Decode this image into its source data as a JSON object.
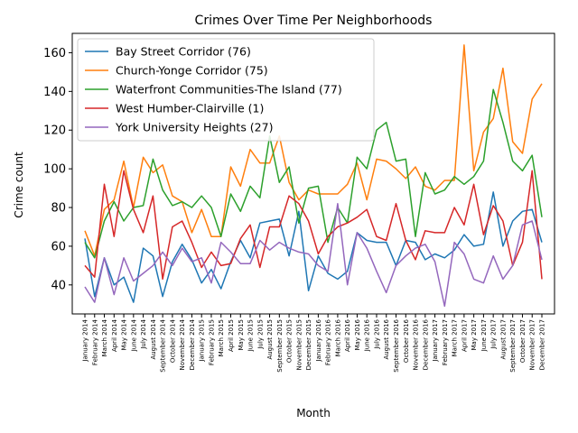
{
  "chart_data": {
    "type": "line",
    "title": "Crimes Over Time Per Neighborhoods",
    "xlabel": "Month",
    "ylabel": "Crime count",
    "ylim": [
      25,
      170
    ],
    "yticks": [
      40,
      60,
      80,
      100,
      120,
      140,
      160
    ],
    "grid": false,
    "legend_position": "top-left",
    "categories": [
      "January 2014",
      "February 2014",
      "March 2014",
      "April 2014",
      "May 2014",
      "June 2014",
      "July 2014",
      "August 2014",
      "September 2014",
      "October 2014",
      "November 2014",
      "December 2014",
      "January 2015",
      "February 2015",
      "March 2015",
      "April 2015",
      "May 2015",
      "June 2015",
      "July 2015",
      "August 2015",
      "September 2015",
      "October 2015",
      "November 2015",
      "December 2015",
      "January 2016",
      "February 2016",
      "March 2016",
      "April 2016",
      "May 2016",
      "June 2016",
      "July 2016",
      "August 2016",
      "September 2016",
      "October 2016",
      "November 2016",
      "December 2016",
      "January 2017",
      "February 2017",
      "March 2017",
      "April 2017",
      "May 2017",
      "June 2017",
      "July 2017",
      "August 2017",
      "September 2017",
      "October 2017",
      "November 2017",
      "December 2017"
    ],
    "series": [
      {
        "name": "Bay Street Corridor (76)",
        "color": "#1f77b4",
        "values": [
          64,
          34,
          54,
          40,
          44,
          31,
          59,
          55,
          34,
          52,
          61,
          53,
          41,
          48,
          38,
          52,
          63,
          54,
          72,
          73,
          74,
          55,
          78,
          37,
          55,
          46,
          43,
          47,
          67,
          63,
          62,
          62,
          50,
          63,
          62,
          53,
          56,
          54,
          58,
          66,
          60,
          61,
          88,
          60,
          73,
          78,
          79,
          62
        ]
      },
      {
        "name": "Church-Yonge Corridor (75)",
        "color": "#ff7f0e",
        "values": [
          68,
          55,
          79,
          84,
          104,
          80,
          106,
          98,
          102,
          86,
          83,
          67,
          79,
          65,
          65,
          101,
          91,
          110,
          103,
          103,
          117,
          93,
          84,
          89,
          87,
          87,
          87,
          92,
          103,
          84,
          105,
          104,
          100,
          95,
          101,
          91,
          89,
          94,
          94,
          164,
          99,
          119,
          126,
          152,
          114,
          108,
          136,
          144
        ]
      },
      {
        "name": "Waterfront Communities-The Island (77)",
        "color": "#2ca02c",
        "values": [
          62,
          54,
          73,
          83,
          73,
          80,
          81,
          105,
          89,
          81,
          83,
          80,
          86,
          80,
          65,
          87,
          78,
          91,
          85,
          117,
          93,
          101,
          72,
          90,
          91,
          62,
          80,
          72,
          106,
          100,
          120,
          124,
          104,
          105,
          65,
          98,
          87,
          89,
          96,
          92,
          96,
          104,
          141,
          124,
          104,
          99,
          107,
          75
        ]
      },
      {
        "name": "West Humber-Clairville (1)",
        "color": "#d62728",
        "values": [
          50,
          44,
          92,
          65,
          99,
          79,
          67,
          86,
          43,
          70,
          73,
          62,
          49,
          57,
          50,
          51,
          64,
          71,
          49,
          70,
          70,
          86,
          82,
          73,
          56,
          65,
          70,
          72,
          75,
          79,
          65,
          63,
          82,
          63,
          53,
          68,
          67,
          67,
          80,
          71,
          92,
          66,
          81,
          73,
          50,
          62,
          99,
          43
        ]
      },
      {
        "name": "York University Heights (27)",
        "color": "#9467bd",
        "values": [
          39,
          31,
          54,
          35,
          54,
          42,
          46,
          50,
          57,
          50,
          59,
          52,
          54,
          41,
          62,
          57,
          51,
          51,
          63,
          58,
          62,
          59,
          57,
          56,
          50,
          47,
          82,
          40,
          67,
          59,
          47,
          36,
          50,
          55,
          59,
          61,
          52,
          29,
          62,
          56,
          43,
          41,
          55,
          43,
          50,
          71,
          73,
          53
        ]
      }
    ]
  }
}
